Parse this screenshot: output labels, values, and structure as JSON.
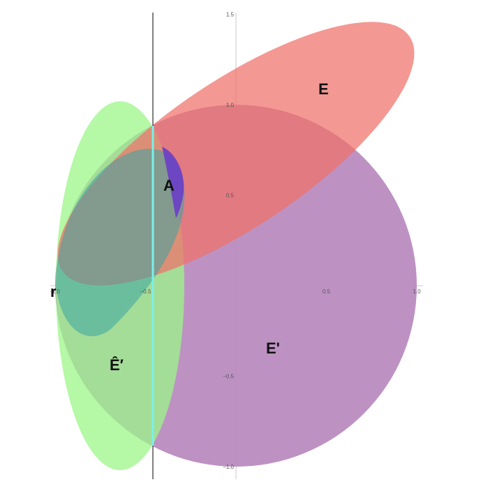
{
  "axes": {
    "x_ticks": [
      {
        "value": -1.0,
        "label": "-1.0"
      },
      {
        "value": -0.5,
        "label": "−0.5"
      },
      {
        "value": 0.5,
        "label": "0.5"
      },
      {
        "value": 1.0,
        "label": "1.0"
      }
    ],
    "y_ticks": [
      {
        "value": 1.5,
        "label": "1.5"
      },
      {
        "value": 1.0,
        "label": "1.0"
      },
      {
        "value": 0.5,
        "label": "0.5"
      },
      {
        "value": -0.5,
        "label": "−0.5"
      },
      {
        "value": -1.0,
        "label": "−1.0"
      }
    ],
    "xlim": [
      -1.0,
      1.0
    ],
    "ylim": [
      -1.0,
      1.5
    ]
  },
  "regions": {
    "E_prime": {
      "label": "E'",
      "color": "#b98cc0"
    },
    "E": {
      "label": "E",
      "color": "#f0706a"
    },
    "E_hat_prime": {
      "label": "Ê′",
      "color": "#9cf588"
    },
    "teal": {
      "color": "#3aa4a4"
    },
    "A": {
      "label": "A",
      "color": "#6a3ec6"
    }
  },
  "point_label": "r",
  "line_color": "#000000",
  "segment_color": "#7af0ea"
}
